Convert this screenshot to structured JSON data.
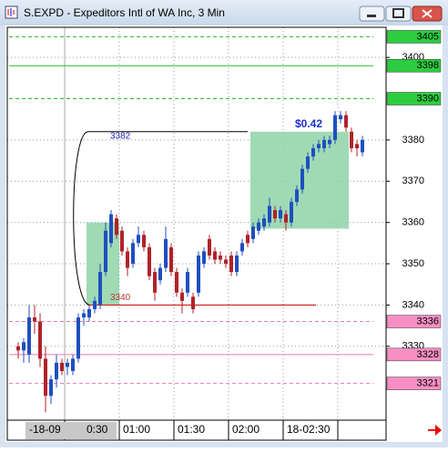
{
  "window": {
    "title": "S.EXPD - Expeditors Intl of WA Inc, 3 Min"
  },
  "chart_data": {
    "type": "candlestick",
    "up_color": "#1f4fbf",
    "down_color": "#b0222a",
    "open": [
      3330,
      3329,
      3328,
      3337,
      3336,
      3327,
      3318,
      3322,
      3326,
      3325,
      3324,
      3327,
      3337,
      3337,
      3339,
      3340,
      3348,
      3355,
      3361,
      3358,
      3353,
      3350,
      3355,
      3357,
      3354,
      3348,
      3346,
      3349,
      3354,
      3348,
      3343,
      3343,
      3342,
      3343,
      3350,
      3356,
      3353,
      3352,
      3351,
      3352,
      3348,
      3353,
      3357,
      3356,
      3358,
      3359,
      3360,
      3363,
      3361,
      3362,
      3360,
      3365,
      3368,
      3373,
      3376,
      3378,
      3378,
      3379,
      3380,
      3385,
      3386,
      3382,
      3379,
      3377
    ],
    "high": [
      3331,
      3332,
      3340,
      3340,
      3338,
      3330,
      3323,
      3328,
      3327,
      3327,
      3328,
      3338,
      3339,
      3340,
      3342,
      3350,
      3360,
      3363,
      3362,
      3359,
      3354,
      3356,
      3359,
      3358,
      3355,
      3349,
      3350,
      3359,
      3355,
      3349,
      3344,
      3349,
      3343,
      3353,
      3354,
      3357,
      3354,
      3353,
      3352,
      3353,
      3353,
      3356,
      3358,
      3360,
      3361,
      3362,
      3366,
      3364,
      3364,
      3363,
      3366,
      3369,
      3374,
      3377,
      3379,
      3380,
      3381,
      3381,
      3387,
      3387,
      3387,
      3383,
      3380,
      3381
    ],
    "low": [
      3327,
      3326,
      3326,
      3333,
      3325,
      3314,
      3316,
      3320,
      3323,
      3323,
      3323,
      3326,
      3335,
      3336,
      3338,
      3339,
      3347,
      3354,
      3356,
      3352,
      3347,
      3349,
      3354,
      3353,
      3346,
      3341,
      3345,
      3348,
      3347,
      3342,
      3338,
      3342,
      3338,
      3342,
      3349,
      3351,
      3350,
      3350,
      3349,
      3347,
      3347,
      3352,
      3354,
      3355,
      3357,
      3358,
      3359,
      3360,
      3360,
      3358,
      3359,
      3364,
      3367,
      3372,
      3375,
      3377,
      3377,
      3378,
      3379,
      3384,
      3382,
      3377,
      3376,
      3376
    ],
    "close": [
      3329,
      3331,
      3337,
      3336,
      3327,
      3318,
      3322,
      3326,
      3324,
      3326,
      3327,
      3337,
      3338,
      3339,
      3341,
      3348,
      3358,
      3362,
      3357,
      3353,
      3349,
      3355,
      3357,
      3354,
      3347,
      3343,
      3349,
      3356,
      3348,
      3343,
      3341,
      3348,
      3339,
      3352,
      3353,
      3352,
      3351,
      3351,
      3350,
      3348,
      3352,
      3355,
      3355,
      3359,
      3360,
      3361,
      3364,
      3361,
      3363,
      3360,
      3365,
      3368,
      3373,
      3376,
      3378,
      3379,
      3380,
      3380,
      3386,
      3386,
      3383,
      3378,
      3378,
      3380
    ],
    "ylim": [
      3312.1,
      3407.3
    ],
    "yticks": [
      3400,
      3380,
      3370,
      3360,
      3350,
      3340,
      3330
    ],
    "xticks": [
      {
        "value": 9,
        "label": null
      },
      {
        "value": 19,
        "label": "01:00"
      },
      {
        "value": 29,
        "label": "01:30"
      },
      {
        "value": 39,
        "label": "02:00"
      },
      {
        "value": 49,
        "label": "18-02:30"
      },
      {
        "value": 59,
        "label": null
      }
    ],
    "cursor_label": [
      "-18-09",
      "0:30"
    ],
    "hlines": [
      {
        "value": 3405,
        "color": "#2db82d",
        "style": "dashed",
        "label_bg": "#2ecc40"
      },
      {
        "value": 3398,
        "color": "#2db82d",
        "style": "solid",
        "label_bg": "#2ecc40"
      },
      {
        "value": 3390,
        "color": "#2db82d",
        "style": "dashed",
        "label_bg": "#2ecc40"
      },
      {
        "value": 3336,
        "color": "#e87ab8",
        "style": "dashed",
        "label_bg": "#f78fc4"
      },
      {
        "value": 3328,
        "color": "#e87ab8",
        "style": "solid",
        "label_bg": "#f78fc4"
      },
      {
        "value": 3321,
        "color": "#e87ab8",
        "style": "dashed",
        "label_bg": "#f78fc4"
      }
    ],
    "zones": [
      {
        "start": 13,
        "end": 18,
        "low": 3340,
        "high": 3360
      },
      {
        "start": 43,
        "end": 60,
        "low": 3358.5,
        "high": 3382
      }
    ],
    "measure": {
      "high": 3382,
      "low": 3340,
      "start": 13,
      "end": 42,
      "low_end": 55,
      "high_label": "3382",
      "low_label": "3340",
      "change": "$0.42"
    }
  }
}
